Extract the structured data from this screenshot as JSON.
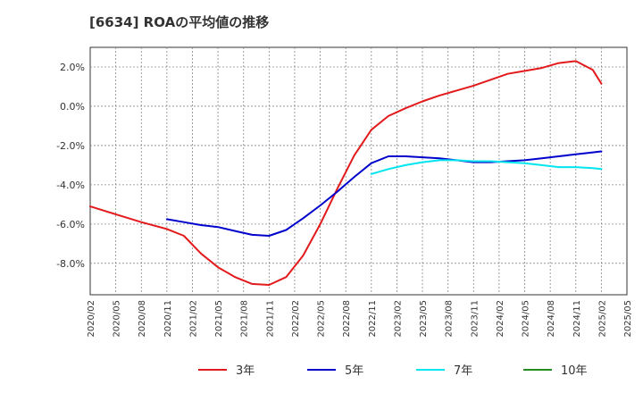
{
  "chart_data": {
    "type": "line",
    "title": "[6634]  ROAの平均値の推移",
    "xlabel": "",
    "ylabel": "",
    "ylim": [
      -9.6,
      3.0
    ],
    "yticks": [
      2.0,
      0.0,
      -2.0,
      -4.0,
      -6.0,
      -8.0
    ],
    "ytick_labels": [
      "2.0%",
      "0.0%",
      "-2.0%",
      "-4.0%",
      "-6.0%",
      "-8.0%"
    ],
    "x_ticks": [
      "2020/02",
      "2020/05",
      "2020/08",
      "2020/11",
      "2021/02",
      "2021/05",
      "2021/08",
      "2021/11",
      "2022/02",
      "2022/05",
      "2022/08",
      "2022/11",
      "2023/02",
      "2023/05",
      "2023/08",
      "2023/11",
      "2024/02",
      "2024/05",
      "2024/08",
      "2024/11",
      "2025/02",
      "2025/05"
    ],
    "grid": true,
    "legend_position": "bottom",
    "series": [
      {
        "name": "3年",
        "color": "#e31a1c",
        "x": [
          "2020/02",
          "2020/05",
          "2020/08",
          "2020/11",
          "2021/01",
          "2021/03",
          "2021/05",
          "2021/07",
          "2021/09",
          "2021/11",
          "2022/01",
          "2022/03",
          "2022/05",
          "2022/07",
          "2022/09",
          "2022/11",
          "2023/01",
          "2023/03",
          "2023/05",
          "2023/07",
          "2023/09",
          "2023/11",
          "2024/01",
          "2024/03",
          "2024/05",
          "2024/07",
          "2024/09",
          "2024/11",
          "2025/01",
          "2025/02"
        ],
        "values": [
          -5.1,
          -5.5,
          -5.9,
          -6.25,
          -6.6,
          -7.5,
          -8.2,
          -8.7,
          -9.05,
          -9.1,
          -8.7,
          -7.6,
          -6.0,
          -4.2,
          -2.5,
          -1.2,
          -0.5,
          -0.1,
          0.25,
          0.55,
          0.8,
          1.05,
          1.35,
          1.65,
          1.8,
          1.95,
          2.2,
          2.3,
          1.85,
          1.15
        ]
      },
      {
        "name": "5年",
        "color": "#0000cc",
        "x": [
          "2020/11",
          "2021/01",
          "2021/03",
          "2021/05",
          "2021/07",
          "2021/09",
          "2021/11",
          "2022/01",
          "2022/03",
          "2022/05",
          "2022/07",
          "2022/09",
          "2022/11",
          "2023/01",
          "2023/03",
          "2023/05",
          "2023/07",
          "2023/09",
          "2023/11",
          "2024/01",
          "2024/03",
          "2024/05",
          "2024/07",
          "2024/09",
          "2024/11",
          "2025/01",
          "2025/02"
        ],
        "values": [
          -5.75,
          -5.9,
          -6.05,
          -6.15,
          -6.35,
          -6.55,
          -6.6,
          -6.3,
          -5.7,
          -5.05,
          -4.35,
          -3.6,
          -2.9,
          -2.55,
          -2.55,
          -2.6,
          -2.65,
          -2.75,
          -2.85,
          -2.85,
          -2.8,
          -2.75,
          -2.65,
          -2.55,
          -2.45,
          -2.35,
          -2.3
        ]
      },
      {
        "name": "7年",
        "color": "#00e5ee",
        "x": [
          "2022/11",
          "2023/01",
          "2023/03",
          "2023/05",
          "2023/07",
          "2023/09",
          "2023/11",
          "2024/01",
          "2024/03",
          "2024/05",
          "2024/07",
          "2024/09",
          "2024/11",
          "2025/01",
          "2025/02"
        ],
        "values": [
          -3.45,
          -3.2,
          -3.0,
          -2.85,
          -2.75,
          -2.75,
          -2.8,
          -2.8,
          -2.85,
          -2.9,
          -3.0,
          -3.1,
          -3.1,
          -3.15,
          -3.2
        ]
      },
      {
        "name": "10年",
        "color": "#228b22",
        "x": [],
        "values": []
      }
    ]
  }
}
